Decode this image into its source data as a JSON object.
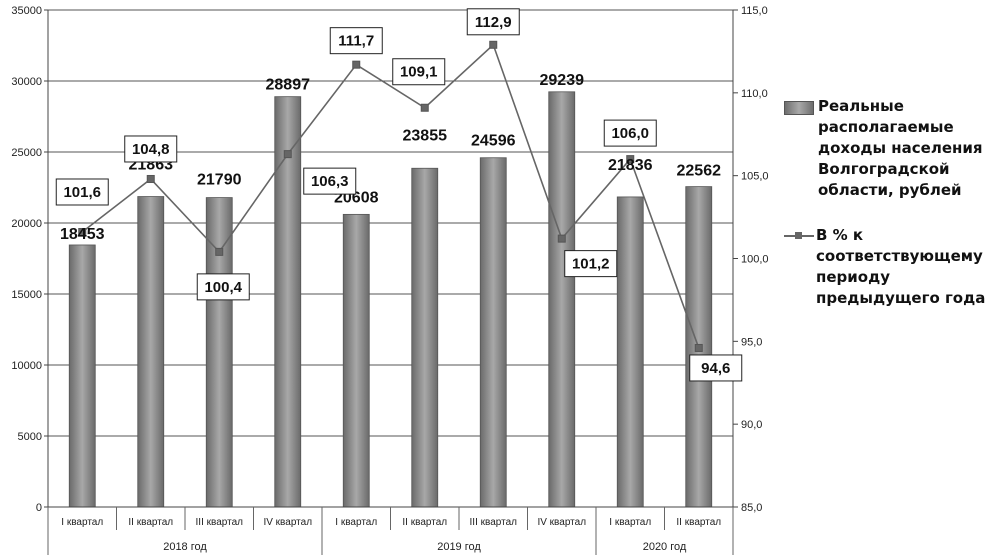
{
  "chart_data": {
    "type": "bar",
    "categories": [
      "I квартал",
      "II квартал",
      "III квартал",
      "IV квартал",
      "I квартал",
      "II квартал",
      "III квартал",
      "IV квартал",
      "I квартал",
      "II квартал"
    ],
    "groups": [
      {
        "label": "2018 год",
        "span": 4
      },
      {
        "label": "2019 год",
        "span": 4
      },
      {
        "label": "2020 год",
        "span": 2
      }
    ],
    "series": [
      {
        "name": "Реальные располагаемые доходы населения Волгоградской области, рублей",
        "type": "bar",
        "axis": "left",
        "values": [
          18453,
          21863,
          21790,
          28897,
          20608,
          23855,
          24596,
          29239,
          21836,
          22562
        ],
        "labels": [
          "18453",
          "21863",
          "21790",
          "28897",
          "20608",
          "23855",
          "24596",
          "29239",
          "21836",
          "22562"
        ],
        "color": "#8c8c8c"
      },
      {
        "name": "В % к соответствующему периоду предыдущего года",
        "type": "line",
        "axis": "right",
        "values": [
          101.6,
          104.8,
          100.4,
          106.3,
          111.7,
          109.1,
          112.9,
          101.2,
          106.0,
          94.6
        ],
        "labels": [
          "101,6",
          "104,8",
          "100,4",
          "106,3",
          "111,7",
          "109,1",
          "112,9",
          "101,2",
          "106,0",
          "94,6"
        ],
        "color": "#666666"
      }
    ],
    "y_left": {
      "ylim": [
        0,
        35000
      ],
      "ticks": [
        0,
        5000,
        10000,
        15000,
        20000,
        25000,
        30000,
        35000
      ],
      "tick_labels": [
        "0",
        "5000",
        "10000",
        "15000",
        "20000",
        "25000",
        "30000",
        "35000"
      ]
    },
    "y_right": {
      "ylim": [
        85,
        115
      ],
      "ticks": [
        85,
        90,
        95,
        100,
        105,
        110,
        115
      ],
      "tick_labels": [
        "85,0",
        "90,0",
        "95,0",
        "100,0",
        "105,0",
        "110,0",
        "115,0"
      ]
    },
    "grid": true,
    "legend_position": "right"
  },
  "legend": {
    "bar_label": "Реальные располагаемые доходы населения Волгоградской области, рублей",
    "bar_lines": [
      "Реальные",
      "располагаемые",
      "доходы населения",
      "Волгоградской",
      "области, рублей"
    ],
    "line_lines": [
      "В % к",
      "соответствующему",
      "периоду",
      "предыдущего года"
    ]
  }
}
